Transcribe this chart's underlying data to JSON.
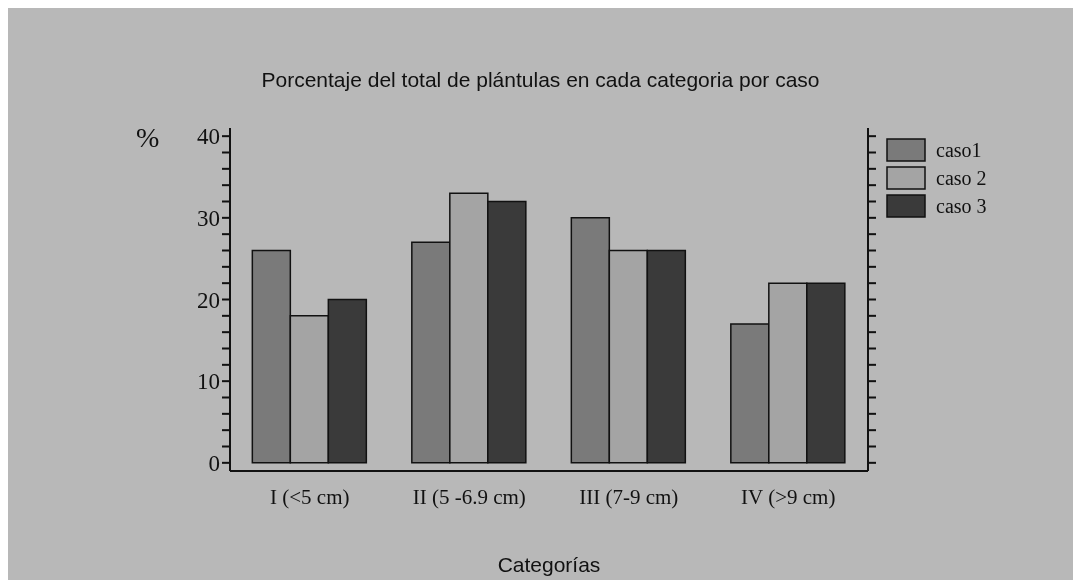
{
  "chart_data": {
    "type": "bar",
    "title": "Porcentaje del total de plántulas en cada categoria por caso",
    "xlabel": "Categorías",
    "ylabel": "%",
    "categories": [
      "I (<5 cm)",
      "II (5 -6.9 cm)",
      "III (7-9 cm)",
      "IV (>9 cm)"
    ],
    "series": [
      {
        "name": "caso1",
        "color": "#7a7a7a",
        "values": [
          26,
          27,
          30,
          17
        ]
      },
      {
        "name": "caso 2",
        "color": "#a4a4a4",
        "values": [
          18,
          33,
          26,
          22
        ]
      },
      {
        "name": "caso 3",
        "color": "#3a3a3a",
        "values": [
          20,
          32,
          26,
          22
        ]
      }
    ],
    "ylim": [
      -1,
      41
    ],
    "yticks": [
      0,
      {
        "value": 2,
        "label": null
      },
      {
        "value": 4,
        "label": null
      },
      {
        "value": 6,
        "label": null
      },
      {
        "value": 8,
        "label": null
      },
      10,
      {
        "value": 12,
        "label": null
      },
      {
        "value": 14,
        "label": null
      },
      {
        "value": 16,
        "label": null
      },
      {
        "value": 18,
        "label": null
      },
      20,
      {
        "value": 22,
        "label": null
      },
      {
        "value": 24,
        "label": null
      },
      {
        "value": 26,
        "label": null
      },
      {
        "value": 28,
        "label": null
      },
      30,
      {
        "value": 32,
        "label": null
      },
      {
        "value": 34,
        "label": null
      },
      {
        "value": 36,
        "label": null
      },
      {
        "value": 38,
        "label": null
      },
      40
    ],
    "legend": "top right",
    "grid": false
  }
}
